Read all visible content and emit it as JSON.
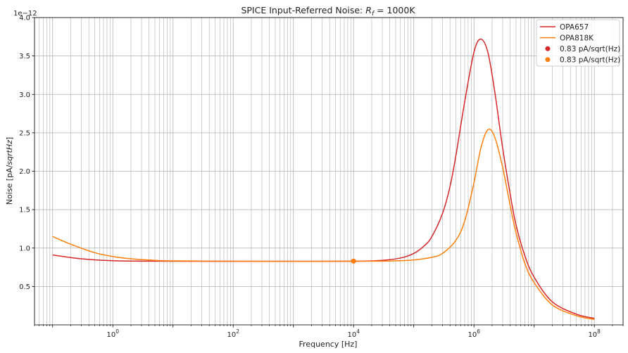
{
  "chart_data": {
    "type": "line",
    "title_prefix": "SPICE Input-Referred Noise: ",
    "title_math_main": "R",
    "title_math_sub": "f",
    "title_suffix": " = 1000K",
    "xlabel": "Frequency [Hz]",
    "ylabel_prefix": "Noise [pA/",
    "ylabel_italic": "sqrtHz",
    "ylabel_suffix": "]",
    "y_offset_text": "1e−12",
    "x_scale": "log",
    "xlim": [
      0.05,
      300000000
    ],
    "ylim": [
      0.0,
      4.0
    ],
    "x_ticks": [
      {
        "value": 1,
        "base": "10",
        "exp": "0"
      },
      {
        "value": 100,
        "base": "10",
        "exp": "2"
      },
      {
        "value": 10000,
        "base": "10",
        "exp": "4"
      },
      {
        "value": 1000000,
        "base": "10",
        "exp": "6"
      },
      {
        "value": 100000000,
        "base": "10",
        "exp": "8"
      }
    ],
    "y_ticks": [
      {
        "value": 0.5,
        "label": "0.5"
      },
      {
        "value": 1.0,
        "label": "1.0"
      },
      {
        "value": 1.5,
        "label": "1.5"
      },
      {
        "value": 2.0,
        "label": "2.0"
      },
      {
        "value": 2.5,
        "label": "2.5"
      },
      {
        "value": 3.0,
        "label": "3.0"
      },
      {
        "value": 3.5,
        "label": "3.5"
      },
      {
        "value": 4.0,
        "label": "4.0"
      }
    ],
    "grid": "both (major and minor)",
    "legend_position": "top-right",
    "series": [
      {
        "name": "OPA657",
        "kind": "line",
        "color": "#d62728",
        "x": [
          0.1,
          0.3,
          1,
          3,
          10,
          100,
          1000,
          10000,
          30000,
          60000,
          100000,
          150000,
          200000,
          300000,
          400000,
          500000,
          700000,
          1000000,
          1300000,
          1700000,
          2200000,
          3000000,
          4000000,
          5000000,
          7000000,
          10000000,
          20000000,
          50000000,
          100000000
        ],
        "y": [
          0.91,
          0.86,
          0.835,
          0.83,
          0.828,
          0.827,
          0.827,
          0.828,
          0.84,
          0.87,
          0.93,
          1.03,
          1.15,
          1.45,
          1.8,
          2.2,
          2.9,
          3.55,
          3.72,
          3.55,
          3.05,
          2.3,
          1.7,
          1.3,
          0.9,
          0.62,
          0.3,
          0.14,
          0.085
        ]
      },
      {
        "name": "OPA818K",
        "kind": "line",
        "color": "#ff7f0e",
        "x": [
          0.1,
          0.2,
          0.5,
          1,
          2,
          5,
          10,
          100,
          1000,
          10000,
          30000,
          60000,
          100000,
          200000,
          300000,
          500000,
          700000,
          1000000,
          1300000,
          1700000,
          2200000,
          3000000,
          4000000,
          5000000,
          7000000,
          10000000,
          20000000,
          50000000,
          100000000
        ],
        "y": [
          1.15,
          1.05,
          0.94,
          0.89,
          0.86,
          0.84,
          0.833,
          0.828,
          0.827,
          0.828,
          0.83,
          0.835,
          0.845,
          0.88,
          0.93,
          1.1,
          1.35,
          1.85,
          2.3,
          2.54,
          2.45,
          2.05,
          1.55,
          1.2,
          0.8,
          0.55,
          0.26,
          0.12,
          0.07
        ]
      },
      {
        "name": "0.83 pA/sqrt(Hz)",
        "kind": "point",
        "color": "#d62728",
        "x": [
          10000
        ],
        "y": [
          0.83
        ]
      },
      {
        "name": "0.83 pA/sqrt(Hz)",
        "kind": "point",
        "color": "#ff7f0e",
        "x": [
          10000
        ],
        "y": [
          0.83
        ]
      }
    ]
  }
}
